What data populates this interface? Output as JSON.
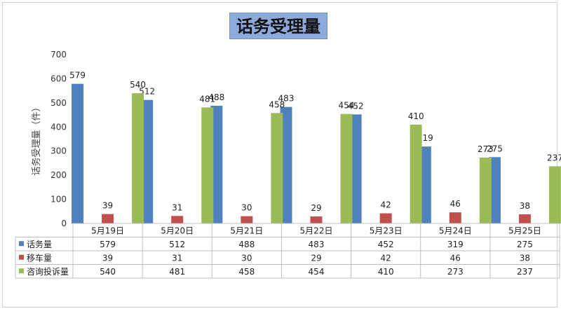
{
  "chart_data": {
    "type": "bar",
    "title": "话务受理量",
    "ylabel": "话务受理量（件）",
    "ylim": [
      0,
      700
    ],
    "yticks": [
      0,
      100,
      200,
      300,
      400,
      500,
      600,
      700
    ],
    "categories": [
      "5月19日",
      "5月20日",
      "5月21日",
      "5月22日",
      "5月23日",
      "5月24日",
      "5月25日"
    ],
    "series": [
      {
        "name": "话务量",
        "color": "#4f81bd",
        "values": [
          579,
          512,
          488,
          483,
          452,
          319,
          275
        ]
      },
      {
        "name": "移车量",
        "color": "#c0504d",
        "values": [
          39,
          31,
          30,
          29,
          42,
          46,
          38
        ]
      },
      {
        "name": "咨询投诉量",
        "color": "#9bbb59",
        "values": [
          540,
          481,
          458,
          454,
          410,
          273,
          237
        ]
      }
    ],
    "legend": "data-table",
    "grid": false
  }
}
